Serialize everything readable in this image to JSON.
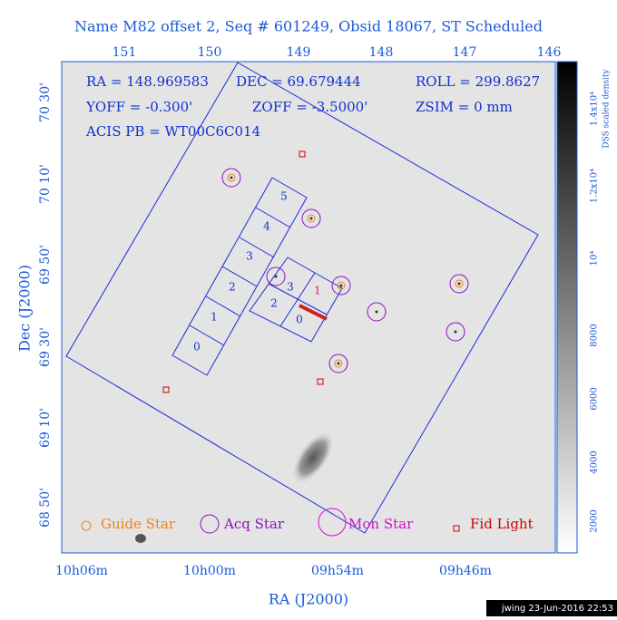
{
  "header": {
    "title": "Name M82 offset 2, Seq # 601249, Obsid 18067, ST Scheduled"
  },
  "axes": {
    "top": [
      "151",
      "150",
      "149",
      "148",
      "147",
      "146"
    ],
    "left": [
      "70 30'",
      "70 10'",
      "69 50'",
      "69 30'",
      "69 10'",
      "68 50'"
    ],
    "bottom": [
      "10h06m",
      "10h00m",
      "09h54m",
      "09h46m"
    ],
    "x_title": "RA (J2000)",
    "y_title": "Dec (J2000)"
  },
  "colorbar": {
    "title": "DSS scaled density",
    "labels": [
      "1.4x10⁴",
      "1.2x10⁴",
      "10⁴",
      "8000",
      "6000",
      "4000",
      "2000"
    ]
  },
  "info": [
    "RA = 148.969583",
    "DEC = 69.679444",
    "ROLL = 299.8627",
    "YOFF =  -0.300'",
    "ZOFF = -3.5000'",
    "ZSIM = 0 mm",
    "ACIS PB = WT00C6C014"
  ],
  "chips": {
    "acis_s": [
      "5",
      "4",
      "3",
      "2",
      "1",
      "0"
    ],
    "acis_i": [
      "3",
      "1",
      "2",
      "0"
    ]
  },
  "legend": [
    "Guide Star",
    "Acq Star",
    "Mon Star",
    "Fid Light"
  ],
  "footer": "jwing 23-Jun-2016 22:53"
}
